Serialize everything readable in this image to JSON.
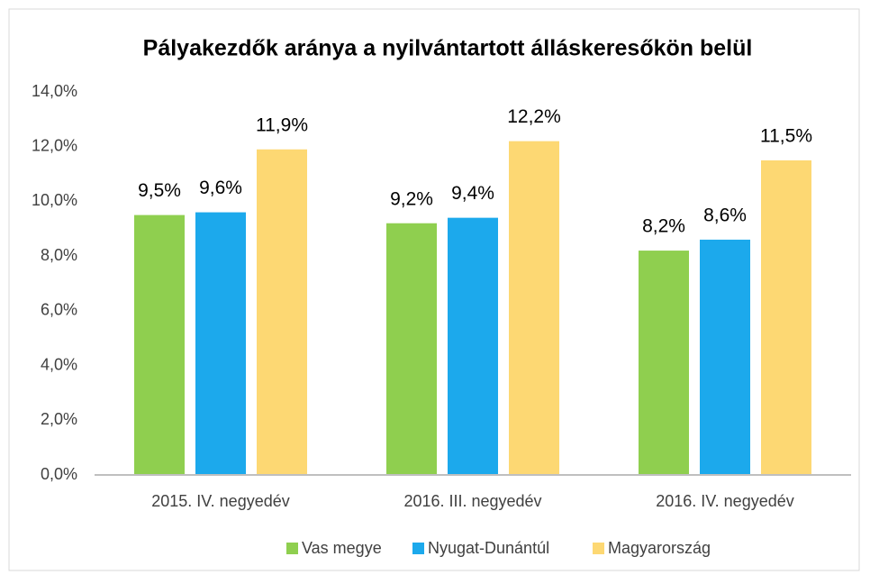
{
  "chart_data": {
    "type": "bar",
    "title": "Pályakezdők aránya a nyilvántartott álláskeresőkön belül",
    "categories": [
      "2015. IV. negyedév",
      "2016. III. negyedév",
      "2016. IV. negyedév"
    ],
    "series": [
      {
        "name": "Vas megye",
        "color": "#8fcf4f",
        "values": [
          9.5,
          9.2,
          8.2
        ],
        "value_labels": [
          "9,5%",
          "9,2%",
          "8,2%"
        ]
      },
      {
        "name": "Nyugat-Dunántúl",
        "color": "#1ca9ec",
        "values": [
          9.6,
          9.4,
          8.6
        ],
        "value_labels": [
          "9,6%",
          "9,4%",
          "8,6%"
        ]
      },
      {
        "name": "Magyarország",
        "color": "#fdd873",
        "values": [
          11.9,
          12.2,
          11.5
        ],
        "value_labels": [
          "11,9%",
          "12,2%",
          "11,5%"
        ]
      }
    ],
    "ylim": [
      0,
      14
    ],
    "yticks": [
      {
        "value": 0,
        "label": "0,0%"
      },
      {
        "value": 2,
        "label": "2,0%"
      },
      {
        "value": 4,
        "label": "4,0%"
      },
      {
        "value": 6,
        "label": "6,0%"
      },
      {
        "value": 8,
        "label": "8,0%"
      },
      {
        "value": 10,
        "label": "10,0%"
      },
      {
        "value": 12,
        "label": "12,0%"
      },
      {
        "value": 14,
        "label": "14,0%"
      }
    ],
    "grid": false,
    "legend": "bottom"
  }
}
